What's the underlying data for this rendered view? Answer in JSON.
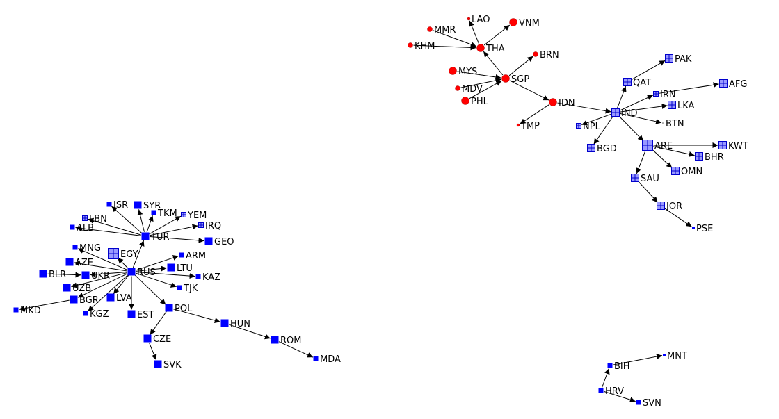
{
  "colors": {
    "background": "#ffffff",
    "edge": "#000000",
    "circle_fill": "#ff0000",
    "square_fill": "#0000ff",
    "grid_fill": "#9999ff",
    "grid_stroke": "#0000cc"
  },
  "nodes": [
    {
      "id": "LAO",
      "label": "LAO",
      "shape": "circle",
      "size": "xs"
    },
    {
      "id": "VNM",
      "label": "VNM",
      "shape": "circle",
      "size": "m"
    },
    {
      "id": "MMR",
      "label": "MMR",
      "shape": "circle",
      "size": "s"
    },
    {
      "id": "KHM",
      "label": "KHM",
      "shape": "circle",
      "size": "s"
    },
    {
      "id": "THA",
      "label": "THA",
      "shape": "circle",
      "size": "m"
    },
    {
      "id": "BRN",
      "label": "BRN",
      "shape": "circle",
      "size": "s"
    },
    {
      "id": "MYS",
      "label": "MYS",
      "shape": "circle",
      "size": "m"
    },
    {
      "id": "SGP",
      "label": "SGP",
      "shape": "circle",
      "size": "m"
    },
    {
      "id": "MDV",
      "label": "MDV",
      "shape": "circle",
      "size": "s"
    },
    {
      "id": "PHL",
      "label": "PHL",
      "shape": "circle",
      "size": "m"
    },
    {
      "id": "IDN",
      "label": "IDN",
      "shape": "circle",
      "size": "m"
    },
    {
      "id": "TMP",
      "label": "TMP",
      "shape": "circle",
      "size": "xs"
    },
    {
      "id": "PAK",
      "label": "PAK",
      "shape": "grid",
      "size": "m"
    },
    {
      "id": "QAT",
      "label": "QAT",
      "shape": "grid",
      "size": "m"
    },
    {
      "id": "AFG",
      "label": "AFG",
      "shape": "grid",
      "size": "m"
    },
    {
      "id": "IRN",
      "label": "IRN",
      "shape": "grid",
      "size": "s"
    },
    {
      "id": "IND",
      "label": "IND",
      "shape": "grid",
      "size": "m"
    },
    {
      "id": "LKA",
      "label": "LKA",
      "shape": "grid",
      "size": "m"
    },
    {
      "id": "BTN",
      "label": "BTN",
      "shape": "none",
      "size": "xs"
    },
    {
      "id": "NPL",
      "label": "NPL",
      "shape": "grid",
      "size": "s"
    },
    {
      "id": "BGD",
      "label": "BGD",
      "shape": "grid",
      "size": "m"
    },
    {
      "id": "ARE",
      "label": "ARE",
      "shape": "grid",
      "size": "l"
    },
    {
      "id": "KWT",
      "label": "KWT",
      "shape": "grid",
      "size": "m"
    },
    {
      "id": "BHR",
      "label": "BHR",
      "shape": "grid",
      "size": "m"
    },
    {
      "id": "OMN",
      "label": "OMN",
      "shape": "grid",
      "size": "m"
    },
    {
      "id": "SAU",
      "label": "SAU",
      "shape": "grid",
      "size": "m"
    },
    {
      "id": "JOR",
      "label": "JOR",
      "shape": "grid",
      "size": "m"
    },
    {
      "id": "PSE",
      "label": "PSE",
      "shape": "square",
      "size": "xs"
    },
    {
      "id": "ISR",
      "label": "ISR",
      "shape": "square",
      "size": "s"
    },
    {
      "id": "SYR",
      "label": "SYR",
      "shape": "square",
      "size": "m"
    },
    {
      "id": "LBN",
      "label": "LBN",
      "shape": "grid",
      "size": "s"
    },
    {
      "id": "TKM",
      "label": "TKM",
      "shape": "square",
      "size": "s"
    },
    {
      "id": "YEM",
      "label": "YEM",
      "shape": "grid",
      "size": "s"
    },
    {
      "id": "ALB",
      "label": "ALB",
      "shape": "square",
      "size": "s"
    },
    {
      "id": "IRQ",
      "label": "IRQ",
      "shape": "grid",
      "size": "s"
    },
    {
      "id": "TUR",
      "label": "TUR",
      "shape": "square",
      "size": "m"
    },
    {
      "id": "GEO",
      "label": "GEO",
      "shape": "square",
      "size": "m"
    },
    {
      "id": "MNG",
      "label": "MNG",
      "shape": "square",
      "size": "s"
    },
    {
      "id": "EGY",
      "label": "EGY",
      "shape": "grid",
      "size": "l"
    },
    {
      "id": "ARM",
      "label": "ARM",
      "shape": "square",
      "size": "s"
    },
    {
      "id": "AZE",
      "label": "AZE",
      "shape": "square",
      "size": "m"
    },
    {
      "id": "LTU",
      "label": "LTU",
      "shape": "square",
      "size": "m"
    },
    {
      "id": "BLR",
      "label": "BLR",
      "shape": "square",
      "size": "m"
    },
    {
      "id": "UKR",
      "label": "UKR",
      "shape": "square",
      "size": "m"
    },
    {
      "id": "RUS",
      "label": "RUS",
      "shape": "square",
      "size": "m"
    },
    {
      "id": "KAZ",
      "label": "KAZ",
      "shape": "square",
      "size": "s"
    },
    {
      "id": "UZB",
      "label": "UZB",
      "shape": "square",
      "size": "m"
    },
    {
      "id": "TJK",
      "label": "TJK",
      "shape": "square",
      "size": "s"
    },
    {
      "id": "BGR",
      "label": "BGR",
      "shape": "square",
      "size": "m"
    },
    {
      "id": "LVA",
      "label": "LVA",
      "shape": "square",
      "size": "m"
    },
    {
      "id": "MKD",
      "label": "MKD",
      "shape": "square",
      "size": "s"
    },
    {
      "id": "POL",
      "label": "POL",
      "shape": "square",
      "size": "m"
    },
    {
      "id": "KGZ",
      "label": "KGZ",
      "shape": "square",
      "size": "s"
    },
    {
      "id": "EST",
      "label": "EST",
      "shape": "square",
      "size": "m"
    },
    {
      "id": "HUN",
      "label": "HUN",
      "shape": "square",
      "size": "m"
    },
    {
      "id": "CZE",
      "label": "CZE",
      "shape": "square",
      "size": "m"
    },
    {
      "id": "ROM",
      "label": "ROM",
      "shape": "square",
      "size": "m"
    },
    {
      "id": "SVK",
      "label": "SVK",
      "shape": "square",
      "size": "m"
    },
    {
      "id": "MDA",
      "label": "MDA",
      "shape": "square",
      "size": "s"
    },
    {
      "id": "BIH",
      "label": "BIH",
      "shape": "square",
      "size": "s"
    },
    {
      "id": "MNT",
      "label": "MNT",
      "shape": "square",
      "size": "xs"
    },
    {
      "id": "HRV",
      "label": "HRV",
      "shape": "square",
      "size": "s"
    },
    {
      "id": "SVN",
      "label": "SVN",
      "shape": "square",
      "size": "s"
    }
  ],
  "edges": [
    [
      "THA",
      "LAO"
    ],
    [
      "THA",
      "VNM"
    ],
    [
      "MMR",
      "THA"
    ],
    [
      "KHM",
      "THA"
    ],
    [
      "SGP",
      "THA"
    ],
    [
      "SGP",
      "BRN"
    ],
    [
      "MYS",
      "SGP"
    ],
    [
      "MDV",
      "SGP"
    ],
    [
      "PHL",
      "SGP"
    ],
    [
      "SGP",
      "IDN"
    ],
    [
      "IDN",
      "TMP"
    ],
    [
      "IDN",
      "IND"
    ],
    [
      "IND",
      "QAT"
    ],
    [
      "QAT",
      "PAK"
    ],
    [
      "IND",
      "IRN"
    ],
    [
      "IRN",
      "AFG"
    ],
    [
      "IND",
      "LKA"
    ],
    [
      "IND",
      "BTN"
    ],
    [
      "IND",
      "NPL"
    ],
    [
      "IND",
      "BGD"
    ],
    [
      "IND",
      "ARE"
    ],
    [
      "ARE",
      "KWT"
    ],
    [
      "ARE",
      "BHR"
    ],
    [
      "ARE",
      "OMN"
    ],
    [
      "ARE",
      "SAU"
    ],
    [
      "SAU",
      "JOR"
    ],
    [
      "JOR",
      "PSE"
    ],
    [
      "TUR",
      "ISR"
    ],
    [
      "TUR",
      "SYR"
    ],
    [
      "TUR",
      "TKM"
    ],
    [
      "TUR",
      "YEM"
    ],
    [
      "TUR",
      "LBN"
    ],
    [
      "TUR",
      "ALB"
    ],
    [
      "TUR",
      "IRQ"
    ],
    [
      "TUR",
      "GEO"
    ],
    [
      "RUS",
      "TUR"
    ],
    [
      "RUS",
      "MNG"
    ],
    [
      "RUS",
      "EGY"
    ],
    [
      "RUS",
      "ARM"
    ],
    [
      "RUS",
      "AZE"
    ],
    [
      "RUS",
      "LTU"
    ],
    [
      "RUS",
      "UKR"
    ],
    [
      "RUS",
      "KAZ"
    ],
    [
      "RUS",
      "UZB"
    ],
    [
      "RUS",
      "TJK"
    ],
    [
      "RUS",
      "BGR"
    ],
    [
      "RUS",
      "LVA"
    ],
    [
      "RUS",
      "EST"
    ],
    [
      "RUS",
      "POL"
    ],
    [
      "RUS",
      "KGZ"
    ],
    [
      "BLR",
      "UKR"
    ],
    [
      "BGR",
      "MKD"
    ],
    [
      "POL",
      "HUN"
    ],
    [
      "POL",
      "CZE"
    ],
    [
      "HUN",
      "ROM"
    ],
    [
      "CZE",
      "SVK"
    ],
    [
      "ROM",
      "MDA"
    ],
    [
      "BIH",
      "MNT"
    ],
    [
      "HRV",
      "BIH"
    ],
    [
      "HRV",
      "SVN"
    ]
  ]
}
